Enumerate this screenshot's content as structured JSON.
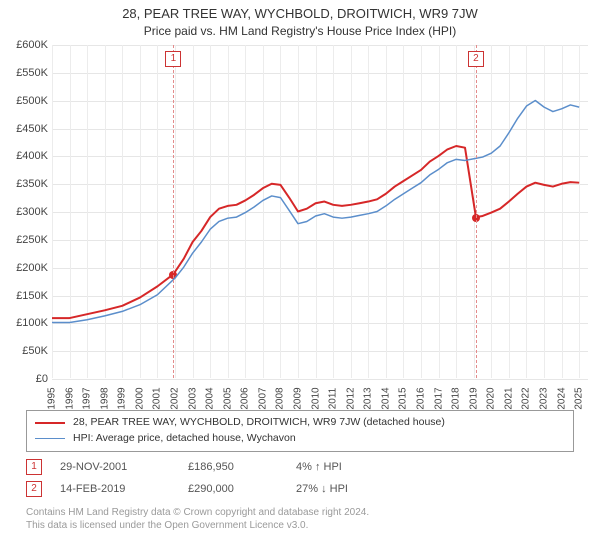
{
  "title": "28, PEAR TREE WAY, WYCHBOLD, DROITWICH, WR9 7JW",
  "subtitle": "Price paid vs. HM Land Registry's House Price Index (HPI)",
  "chart": {
    "type": "line",
    "background_color": "#ffffff",
    "grid_color": "#e6e6e6",
    "yaxis": {
      "min": 0,
      "max": 600000,
      "step": 50000,
      "prefix": "£",
      "label_fontsize": 11,
      "tick_format": "K"
    },
    "xaxis": {
      "min": 1995,
      "max": 2025.5,
      "ticks": [
        1995,
        1996,
        1997,
        1998,
        1999,
        2000,
        2001,
        2002,
        2003,
        2004,
        2005,
        2006,
        2007,
        2008,
        2009,
        2010,
        2011,
        2012,
        2013,
        2014,
        2015,
        2016,
        2017,
        2018,
        2019,
        2020,
        2021,
        2022,
        2023,
        2024,
        2025
      ],
      "label_fontsize": 10
    },
    "series": [
      {
        "name": "property",
        "label": "28, PEAR TREE WAY, WYCHBOLD, DROITWICH, WR9 7JW (detached house)",
        "color": "#d62728",
        "line_width": 2,
        "points": [
          [
            1995,
            108000
          ],
          [
            1996,
            108000
          ],
          [
            1997,
            115000
          ],
          [
            1998,
            122000
          ],
          [
            1999,
            130000
          ],
          [
            2000,
            145000
          ],
          [
            2001,
            165000
          ],
          [
            2001.91,
            186950
          ],
          [
            2002.5,
            215000
          ],
          [
            2003,
            245000
          ],
          [
            2003.5,
            265000
          ],
          [
            2004,
            290000
          ],
          [
            2004.5,
            305000
          ],
          [
            2005,
            310000
          ],
          [
            2005.5,
            312000
          ],
          [
            2006,
            320000
          ],
          [
            2006.5,
            330000
          ],
          [
            2007,
            342000
          ],
          [
            2007.5,
            350000
          ],
          [
            2008,
            348000
          ],
          [
            2008.5,
            325000
          ],
          [
            2009,
            300000
          ],
          [
            2009.5,
            305000
          ],
          [
            2010,
            315000
          ],
          [
            2010.5,
            318000
          ],
          [
            2011,
            312000
          ],
          [
            2011.5,
            310000
          ],
          [
            2012,
            312000
          ],
          [
            2012.5,
            315000
          ],
          [
            2013,
            318000
          ],
          [
            2013.5,
            322000
          ],
          [
            2014,
            332000
          ],
          [
            2014.5,
            345000
          ],
          [
            2015,
            355000
          ],
          [
            2015.5,
            365000
          ],
          [
            2016,
            375000
          ],
          [
            2016.5,
            390000
          ],
          [
            2017,
            400000
          ],
          [
            2017.5,
            412000
          ],
          [
            2018,
            418000
          ],
          [
            2018.5,
            415000
          ],
          [
            2019.12,
            290000
          ],
          [
            2019.5,
            292000
          ],
          [
            2020,
            298000
          ],
          [
            2020.5,
            305000
          ],
          [
            2021,
            318000
          ],
          [
            2021.5,
            332000
          ],
          [
            2022,
            345000
          ],
          [
            2022.5,
            352000
          ],
          [
            2023,
            348000
          ],
          [
            2023.5,
            345000
          ],
          [
            2024,
            350000
          ],
          [
            2024.5,
            353000
          ],
          [
            2025,
            352000
          ]
        ]
      },
      {
        "name": "hpi",
        "label": "HPI: Average price, detached house, Wychavon",
        "color": "#5b8ecb",
        "line_width": 1.5,
        "points": [
          [
            1995,
            100000
          ],
          [
            1996,
            100000
          ],
          [
            1997,
            105000
          ],
          [
            1998,
            112000
          ],
          [
            1999,
            120000
          ],
          [
            2000,
            132000
          ],
          [
            2001,
            150000
          ],
          [
            2002,
            180000
          ],
          [
            2002.5,
            200000
          ],
          [
            2003,
            225000
          ],
          [
            2003.5,
            245000
          ],
          [
            2004,
            268000
          ],
          [
            2004.5,
            282000
          ],
          [
            2005,
            288000
          ],
          [
            2005.5,
            290000
          ],
          [
            2006,
            298000
          ],
          [
            2006.5,
            308000
          ],
          [
            2007,
            320000
          ],
          [
            2007.5,
            328000
          ],
          [
            2008,
            325000
          ],
          [
            2008.5,
            302000
          ],
          [
            2009,
            278000
          ],
          [
            2009.5,
            282000
          ],
          [
            2010,
            292000
          ],
          [
            2010.5,
            296000
          ],
          [
            2011,
            290000
          ],
          [
            2011.5,
            288000
          ],
          [
            2012,
            290000
          ],
          [
            2012.5,
            293000
          ],
          [
            2013,
            296000
          ],
          [
            2013.5,
            300000
          ],
          [
            2014,
            310000
          ],
          [
            2014.5,
            322000
          ],
          [
            2015,
            332000
          ],
          [
            2015.5,
            342000
          ],
          [
            2016,
            352000
          ],
          [
            2016.5,
            366000
          ],
          [
            2017,
            376000
          ],
          [
            2017.5,
            388000
          ],
          [
            2018,
            394000
          ],
          [
            2018.5,
            392000
          ],
          [
            2019,
            395000
          ],
          [
            2019.5,
            398000
          ],
          [
            2020,
            405000
          ],
          [
            2020.5,
            418000
          ],
          [
            2021,
            442000
          ],
          [
            2021.5,
            468000
          ],
          [
            2022,
            490000
          ],
          [
            2022.5,
            500000
          ],
          [
            2023,
            488000
          ],
          [
            2023.5,
            480000
          ],
          [
            2024,
            485000
          ],
          [
            2024.5,
            492000
          ],
          [
            2025,
            488000
          ]
        ]
      }
    ],
    "reference_lines": [
      {
        "n": "1",
        "x": 2001.91,
        "marker_y": 186950,
        "marker_color": "#d62728"
      },
      {
        "n": "2",
        "x": 2019.12,
        "marker_y": 290000,
        "marker_color": "#d62728"
      }
    ]
  },
  "legend": {
    "border_color": "#999999",
    "items": [
      {
        "color": "#d62728",
        "width": 2,
        "text": "28, PEAR TREE WAY, WYCHBOLD, DROITWICH, WR9 7JW (detached house)"
      },
      {
        "color": "#5b8ecb",
        "width": 1.5,
        "text": "HPI: Average price, detached house, Wychavon"
      }
    ]
  },
  "transactions": [
    {
      "n": "1",
      "date": "29-NOV-2001",
      "price": "£186,950",
      "diff": "4% ↑ HPI"
    },
    {
      "n": "2",
      "date": "14-FEB-2019",
      "price": "£290,000",
      "diff": "27% ↓ HPI"
    }
  ],
  "footer_line1": "Contains HM Land Registry data © Crown copyright and database right 2024.",
  "footer_line2": "This data is licensed under the Open Government Licence v3.0."
}
